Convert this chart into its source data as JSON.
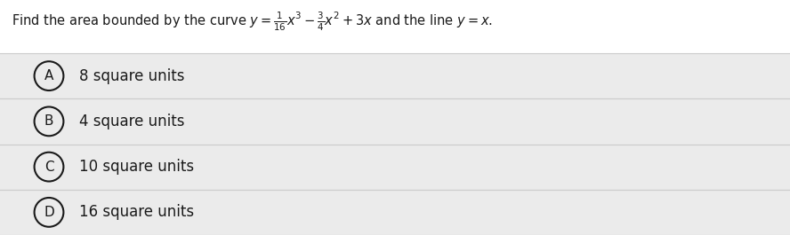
{
  "background_color": "#f2f2f2",
  "question_bg": "#ffffff",
  "option_bg": "#ebebeb",
  "border_color": "#cccccc",
  "text_color": "#1a1a1a",
  "options": [
    {
      "label": "A",
      "text": "8 square units"
    },
    {
      "label": "B",
      "text": "4 square units"
    },
    {
      "label": "C",
      "text": "10 square units"
    },
    {
      "label": "D",
      "text": "16 square units"
    }
  ],
  "font_size_question": 10.5,
  "font_size_options": 12,
  "font_size_circle": 11
}
